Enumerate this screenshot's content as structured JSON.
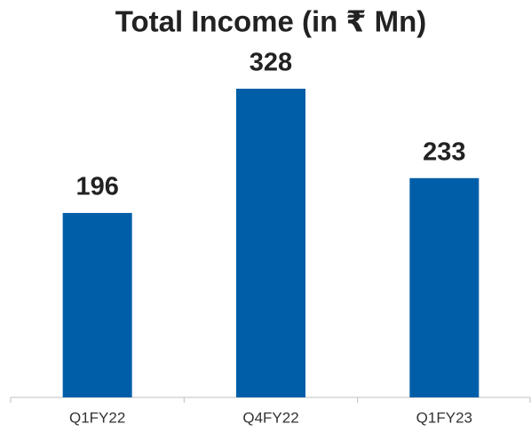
{
  "chart_data": {
    "type": "bar",
    "title": "Total Income (in ₹ Mn)",
    "categories": [
      "Q1FY22",
      "Q4FY22",
      "Q1FY23"
    ],
    "values": [
      196,
      328,
      233
    ],
    "color": "#005ea8"
  }
}
